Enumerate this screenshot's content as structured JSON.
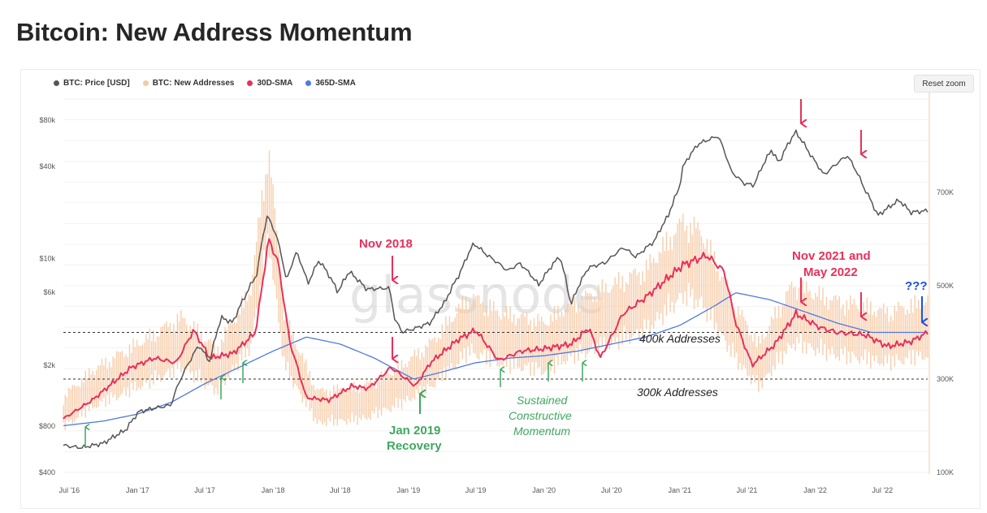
{
  "page": {
    "title": "Bitcoin: New Address Momentum",
    "reset_zoom": "Reset zoom",
    "watermark": "glassnode"
  },
  "legend": [
    {
      "label": "BTC: Price [USD]",
      "color": "#555555"
    },
    {
      "label": "BTC: New Addresses",
      "color": "#f6c9a3"
    },
    {
      "label": "30D-SMA",
      "color": "#e8305a"
    },
    {
      "label": "365D-SMA",
      "color": "#4f78e2"
    }
  ],
  "chart_data": {
    "type": "line",
    "x_ticks": [
      "Jul '16",
      "Jan '17",
      "Jul '17",
      "Jan '18",
      "Jul '18",
      "Jan '19",
      "Jul '19",
      "Jan '20",
      "Jul '20",
      "Jan '21",
      "Jul '21",
      "Jan '22",
      "Jul '22"
    ],
    "y_left_ticks": [
      "$400",
      "$800",
      "$2k",
      "$6k",
      "$10k",
      "$40k",
      "$80k"
    ],
    "y_right_ticks": [
      "100K",
      "300K",
      "500K",
      "700K"
    ],
    "y_right_range": [
      100000,
      900000
    ],
    "y_left_scale": "log",
    "x_range": [
      "2016-06-15",
      "2022-10-31"
    ],
    "series": [
      {
        "name": "BTC: Price [USD]",
        "color": "#555555",
        "axis": "left",
        "points": [
          [
            "2016-06-15",
            600
          ],
          [
            "2016-08-01",
            580
          ],
          [
            "2016-10-01",
            620
          ],
          [
            "2016-12-01",
            760
          ],
          [
            "2017-01-05",
            1000
          ],
          [
            "2017-02-15",
            1050
          ],
          [
            "2017-04-01",
            1100
          ],
          [
            "2017-05-20",
            2100
          ],
          [
            "2017-06-15",
            2700
          ],
          [
            "2017-07-15",
            2100
          ],
          [
            "2017-08-15",
            4100
          ],
          [
            "2017-09-15",
            3800
          ],
          [
            "2017-10-20",
            5800
          ],
          [
            "2017-11-20",
            8000
          ],
          [
            "2017-12-17",
            19000
          ],
          [
            "2018-01-10",
            14000
          ],
          [
            "2018-02-06",
            7000
          ],
          [
            "2018-03-05",
            11000
          ],
          [
            "2018-04-05",
            6800
          ],
          [
            "2018-05-05",
            9700
          ],
          [
            "2018-06-25",
            6000
          ],
          [
            "2018-07-25",
            8200
          ],
          [
            "2018-09-10",
            6300
          ],
          [
            "2018-11-10",
            6400
          ],
          [
            "2018-11-25",
            4000
          ],
          [
            "2018-12-15",
            3300
          ],
          [
            "2019-01-20",
            3500
          ],
          [
            "2019-03-01",
            3800
          ],
          [
            "2019-04-10",
            5200
          ],
          [
            "2019-05-20",
            8000
          ],
          [
            "2019-06-26",
            12500
          ],
          [
            "2019-08-01",
            10500
          ],
          [
            "2019-09-25",
            8300
          ],
          [
            "2019-10-28",
            9300
          ],
          [
            "2019-12-18",
            6700
          ],
          [
            "2020-02-12",
            10300
          ],
          [
            "2020-03-13",
            4900
          ],
          [
            "2020-04-30",
            8700
          ],
          [
            "2020-06-15",
            9400
          ],
          [
            "2020-08-02",
            11800
          ],
          [
            "2020-09-05",
            10200
          ],
          [
            "2020-10-25",
            13000
          ],
          [
            "2020-12-01",
            19000
          ],
          [
            "2020-12-31",
            29000
          ],
          [
            "2021-01-10",
            40000
          ],
          [
            "2021-02-20",
            56000
          ],
          [
            "2021-04-14",
            63000
          ],
          [
            "2021-05-19",
            37000
          ],
          [
            "2021-06-22",
            31000
          ],
          [
            "2021-07-20",
            30000
          ],
          [
            "2021-09-05",
            51000
          ],
          [
            "2021-09-25",
            42000
          ],
          [
            "2021-11-09",
            67000
          ],
          [
            "2021-12-20",
            47000
          ],
          [
            "2022-01-24",
            35000
          ],
          [
            "2022-03-28",
            47000
          ],
          [
            "2022-05-12",
            29000
          ],
          [
            "2022-06-18",
            19000
          ],
          [
            "2022-08-15",
            24000
          ],
          [
            "2022-09-15",
            20000
          ],
          [
            "2022-10-31",
            20500
          ]
        ]
      },
      {
        "name": "BTC: New Addresses",
        "color": "#f6c9a3",
        "axis": "right",
        "points": [
          [
            "2016-06-15",
            230000
          ],
          [
            "2016-09-01",
            280000
          ],
          [
            "2017-01-01",
            330000
          ],
          [
            "2017-05-01",
            380000
          ],
          [
            "2017-08-01",
            320000
          ],
          [
            "2017-11-01",
            430000
          ],
          [
            "2017-12-20",
            700000
          ],
          [
            "2018-02-01",
            380000
          ],
          [
            "2018-05-01",
            240000
          ],
          [
            "2018-09-01",
            250000
          ],
          [
            "2018-12-15",
            290000
          ],
          [
            "2019-03-01",
            330000
          ],
          [
            "2019-06-15",
            420000
          ],
          [
            "2019-09-01",
            390000
          ],
          [
            "2020-01-01",
            370000
          ],
          [
            "2020-03-01",
            400000
          ],
          [
            "2020-07-01",
            440000
          ],
          [
            "2020-10-01",
            470000
          ],
          [
            "2021-01-10",
            560000
          ],
          [
            "2021-03-01",
            540000
          ],
          [
            "2021-06-01",
            400000
          ],
          [
            "2021-08-01",
            330000
          ],
          [
            "2021-11-01",
            440000
          ],
          [
            "2022-03-01",
            410000
          ],
          [
            "2022-05-15",
            400000
          ],
          [
            "2022-07-15",
            390000
          ],
          [
            "2022-10-31",
            410000
          ]
        ]
      },
      {
        "name": "30D-SMA",
        "color": "#e8305a",
        "axis": "right",
        "points": [
          [
            "2016-06-15",
            215000
          ],
          [
            "2016-09-01",
            255000
          ],
          [
            "2016-12-15",
            325000
          ],
          [
            "2017-02-15",
            345000
          ],
          [
            "2017-04-15",
            335000
          ],
          [
            "2017-06-01",
            405000
          ],
          [
            "2017-07-15",
            345000
          ],
          [
            "2017-09-15",
            355000
          ],
          [
            "2017-11-15",
            400000
          ],
          [
            "2017-12-20",
            600000
          ],
          [
            "2018-01-15",
            550000
          ],
          [
            "2018-02-15",
            380000
          ],
          [
            "2018-04-01",
            260000
          ],
          [
            "2018-06-01",
            255000
          ],
          [
            "2018-08-01",
            285000
          ],
          [
            "2018-09-15",
            280000
          ],
          [
            "2018-11-15",
            325000
          ],
          [
            "2019-01-20",
            285000
          ],
          [
            "2019-03-01",
            335000
          ],
          [
            "2019-05-15",
            385000
          ],
          [
            "2019-07-01",
            405000
          ],
          [
            "2019-09-01",
            340000
          ],
          [
            "2019-11-01",
            360000
          ],
          [
            "2020-01-01",
            365000
          ],
          [
            "2020-03-15",
            375000
          ],
          [
            "2020-05-01",
            410000
          ],
          [
            "2020-06-01",
            345000
          ],
          [
            "2020-08-01",
            440000
          ],
          [
            "2020-10-01",
            475000
          ],
          [
            "2021-01-10",
            545000
          ],
          [
            "2021-03-15",
            565000
          ],
          [
            "2021-05-01",
            530000
          ],
          [
            "2021-06-01",
            420000
          ],
          [
            "2021-07-15",
            330000
          ],
          [
            "2021-09-15",
            375000
          ],
          [
            "2021-11-10",
            440000
          ],
          [
            "2022-01-15",
            410000
          ],
          [
            "2022-03-01",
            400000
          ],
          [
            "2022-05-15",
            395000
          ],
          [
            "2022-07-15",
            370000
          ],
          [
            "2022-09-15",
            380000
          ],
          [
            "2022-10-31",
            400000
          ]
        ]
      },
      {
        "name": "365D-SMA",
        "color": "#4f78e2",
        "axis": "right",
        "points": [
          [
            "2016-06-15",
            200000
          ],
          [
            "2016-10-01",
            210000
          ],
          [
            "2017-01-01",
            225000
          ],
          [
            "2017-04-01",
            250000
          ],
          [
            "2017-07-01",
            290000
          ],
          [
            "2017-10-01",
            325000
          ],
          [
            "2018-01-01",
            360000
          ],
          [
            "2018-04-01",
            390000
          ],
          [
            "2018-07-01",
            375000
          ],
          [
            "2018-10-01",
            345000
          ],
          [
            "2019-01-15",
            300000
          ],
          [
            "2019-04-01",
            315000
          ],
          [
            "2019-07-01",
            335000
          ],
          [
            "2019-10-01",
            345000
          ],
          [
            "2020-01-01",
            350000
          ],
          [
            "2020-04-01",
            360000
          ],
          [
            "2020-07-01",
            375000
          ],
          [
            "2020-10-01",
            390000
          ],
          [
            "2021-01-01",
            415000
          ],
          [
            "2021-04-01",
            455000
          ],
          [
            "2021-06-01",
            485000
          ],
          [
            "2021-09-01",
            470000
          ],
          [
            "2021-12-01",
            445000
          ],
          [
            "2022-03-01",
            420000
          ],
          [
            "2022-06-01",
            400000
          ],
          [
            "2022-10-31",
            400000
          ]
        ]
      }
    ],
    "reference_lines": [
      {
        "label": "400k Addresses",
        "value": 400000
      },
      {
        "label": "300k Addresses",
        "value": 300000
      }
    ],
    "grid": true
  },
  "annotations": {
    "nov2018": "Nov 2018",
    "nov2021_line1": "Nov 2021 and",
    "nov2021_line2": "May 2022",
    "qmarks": "???",
    "jan2019_line1": "Jan 2019",
    "jan2019_line2": "Recovery",
    "sustained_line1": "Sustained",
    "sustained_line2": "Constructive",
    "sustained_line3": "Momentum",
    "addr400": "400k Addresses",
    "addr300": "300k Addresses"
  },
  "colors": {
    "red": "#e8305a",
    "green": "#3ea85f",
    "blue": "#1e4fe0"
  }
}
